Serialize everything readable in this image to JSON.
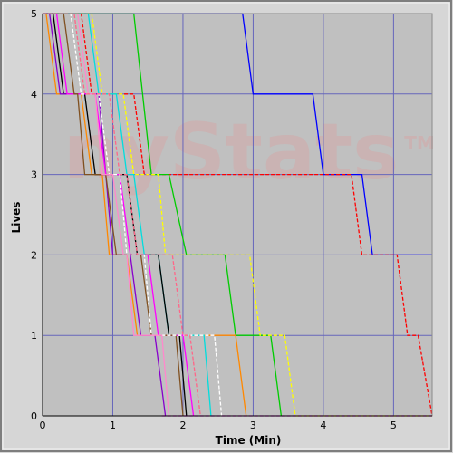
{
  "watermark": "nyStats",
  "watermark_tm": "TM",
  "chart_data": {
    "type": "line",
    "step": true,
    "xlabel": "Time (Min)",
    "ylabel": "Lives",
    "xlim": [
      0,
      5.55
    ],
    "ylim": [
      0,
      5
    ],
    "x_ticks": [
      "0",
      "1",
      "2",
      "3",
      "4",
      "5"
    ],
    "y_ticks": [
      "0",
      "1",
      "2",
      "3",
      "4",
      "5"
    ],
    "grid": true,
    "legend": "none",
    "colors": {
      "background": "#c0c0c0",
      "grid": "#6666bb",
      "frame": "#8a8a8a",
      "axis_text": "#000000"
    },
    "series": [
      {
        "color": "#0000ff",
        "dashed": false,
        "points": [
          [
            0,
            5
          ],
          [
            2.85,
            5
          ],
          [
            3.0,
            4
          ],
          [
            3.85,
            4
          ],
          [
            4.0,
            3
          ],
          [
            4.55,
            3
          ],
          [
            4.7,
            2
          ],
          [
            5.55,
            2
          ]
        ]
      },
      {
        "color": "#ff0000",
        "dashed": true,
        "points": [
          [
            0,
            5
          ],
          [
            0.55,
            5
          ],
          [
            0.7,
            4
          ],
          [
            1.3,
            4
          ],
          [
            1.45,
            3
          ],
          [
            4.4,
            3
          ],
          [
            4.55,
            2
          ],
          [
            5.05,
            2
          ],
          [
            5.2,
            1
          ],
          [
            5.35,
            1
          ],
          [
            5.55,
            0
          ]
        ]
      },
      {
        "color": "#00cc00",
        "dashed": false,
        "points": [
          [
            0,
            5
          ],
          [
            1.3,
            5
          ],
          [
            1.55,
            3
          ],
          [
            1.8,
            3
          ],
          [
            2.05,
            2
          ],
          [
            2.6,
            2
          ],
          [
            2.75,
            1
          ],
          [
            3.25,
            1
          ],
          [
            3.4,
            0
          ]
        ]
      },
      {
        "color": "#ffff00",
        "dashed": true,
        "points": [
          [
            0,
            5
          ],
          [
            0.7,
            5
          ],
          [
            0.85,
            4
          ],
          [
            1.15,
            4
          ],
          [
            1.3,
            3
          ],
          [
            1.65,
            3
          ],
          [
            1.75,
            2
          ],
          [
            2.95,
            2
          ],
          [
            3.1,
            1
          ],
          [
            3.45,
            1
          ],
          [
            3.6,
            0
          ],
          [
            5.55,
            0
          ]
        ]
      },
      {
        "color": "#ff8800",
        "dashed": false,
        "points": [
          [
            0,
            5
          ],
          [
            0.05,
            5
          ],
          [
            0.2,
            4
          ],
          [
            0.55,
            4
          ],
          [
            0.7,
            3
          ],
          [
            0.85,
            3
          ],
          [
            0.95,
            2
          ],
          [
            1.2,
            2
          ],
          [
            1.35,
            1
          ],
          [
            2.75,
            1
          ],
          [
            2.9,
            0
          ]
        ]
      },
      {
        "color": "#00dddd",
        "dashed": false,
        "points": [
          [
            0,
            5
          ],
          [
            0.65,
            5
          ],
          [
            0.8,
            4
          ],
          [
            1.05,
            4
          ],
          [
            1.2,
            3
          ],
          [
            1.3,
            3
          ],
          [
            1.45,
            2
          ],
          [
            1.65,
            2
          ],
          [
            1.8,
            1
          ],
          [
            2.3,
            1
          ],
          [
            2.4,
            0
          ]
        ]
      },
      {
        "color": "#000000",
        "dashed": false,
        "points": [
          [
            0,
            5
          ],
          [
            0.15,
            5
          ],
          [
            0.3,
            4
          ],
          [
            0.6,
            4
          ],
          [
            0.75,
            3
          ],
          [
            1.2,
            3
          ],
          [
            1.35,
            2
          ],
          [
            1.65,
            2
          ],
          [
            1.8,
            1
          ],
          [
            1.95,
            1
          ],
          [
            2.05,
            0
          ]
        ]
      },
      {
        "color": "#8800cc",
        "dashed": false,
        "points": [
          [
            0,
            5
          ],
          [
            0.1,
            5
          ],
          [
            0.25,
            4
          ],
          [
            0.8,
            4
          ],
          [
            1.0,
            2
          ],
          [
            1.25,
            2
          ],
          [
            1.4,
            1
          ],
          [
            1.6,
            1
          ],
          [
            1.75,
            0
          ]
        ]
      },
      {
        "color": "#ff00ff",
        "dashed": false,
        "points": [
          [
            0,
            5
          ],
          [
            0.2,
            5
          ],
          [
            0.35,
            4
          ],
          [
            0.75,
            4
          ],
          [
            0.9,
            3
          ],
          [
            1.1,
            3
          ],
          [
            1.25,
            2
          ],
          [
            1.5,
            2
          ],
          [
            1.65,
            1
          ],
          [
            2.0,
            1
          ],
          [
            2.15,
            0
          ]
        ]
      },
      {
        "color": "#805020",
        "dashed": false,
        "points": [
          [
            0,
            5
          ],
          [
            0.3,
            5
          ],
          [
            0.45,
            4
          ],
          [
            0.5,
            4
          ],
          [
            0.6,
            3
          ],
          [
            0.9,
            3
          ],
          [
            1.05,
            2
          ],
          [
            1.4,
            2
          ],
          [
            1.55,
            1
          ],
          [
            1.9,
            1
          ],
          [
            2.0,
            0
          ]
        ]
      },
      {
        "color": "#ffffff",
        "dashed": true,
        "points": [
          [
            0,
            5
          ],
          [
            0.4,
            5
          ],
          [
            0.55,
            4
          ],
          [
            0.8,
            4
          ],
          [
            0.95,
            3
          ],
          [
            1.1,
            3
          ],
          [
            1.2,
            2
          ],
          [
            1.45,
            2
          ],
          [
            1.55,
            1
          ],
          [
            2.45,
            1
          ],
          [
            2.55,
            0
          ]
        ]
      },
      {
        "color": "#ff88cc",
        "dashed": false,
        "points": [
          [
            0,
            5
          ],
          [
            0.5,
            5
          ],
          [
            0.65,
            4
          ],
          [
            0.75,
            4
          ],
          [
            0.85,
            3
          ],
          [
            1.0,
            3
          ],
          [
            1.15,
            2
          ],
          [
            1.2,
            2
          ],
          [
            1.3,
            1
          ],
          [
            1.7,
            1
          ],
          [
            1.8,
            0
          ]
        ]
      },
      {
        "color": "#ff6688",
        "dashed": true,
        "points": [
          [
            0,
            5
          ],
          [
            0.45,
            5
          ],
          [
            0.6,
            4
          ],
          [
            0.95,
            4
          ],
          [
            1.1,
            3
          ],
          [
            1.2,
            3
          ],
          [
            1.35,
            2
          ],
          [
            1.85,
            2
          ],
          [
            2.0,
            1
          ],
          [
            2.1,
            1
          ],
          [
            2.25,
            0
          ]
        ]
      },
      {
        "color": "#ff00ff",
        "dashed": true,
        "points": [
          [
            1.7,
            0
          ],
          [
            5.55,
            0
          ]
        ]
      }
    ]
  }
}
